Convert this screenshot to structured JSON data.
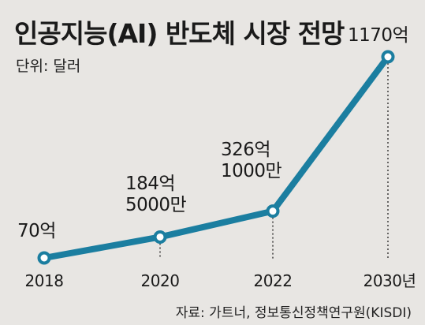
{
  "chart_data": {
    "type": "line",
    "title": "인공지능(AI) 반도체 시장 전망",
    "unit_label": "단위: 달러",
    "categories": [
      "2018",
      "2020",
      "2022",
      "2030년"
    ],
    "values": [
      7000000000,
      18450000000,
      32610000000,
      117000000000
    ],
    "data_labels": [
      [
        "70억"
      ],
      [
        "184억",
        "5000만"
      ],
      [
        "326억",
        "1000만"
      ],
      [
        "1170억"
      ]
    ],
    "source": "자료: 가트너, 정보통신정책연구원(KISDI)",
    "grid": false,
    "legend": "none",
    "colors": {
      "line": "#1b7ea0",
      "marker_fill": "#ffffff",
      "background": "#e8e6e3"
    }
  }
}
